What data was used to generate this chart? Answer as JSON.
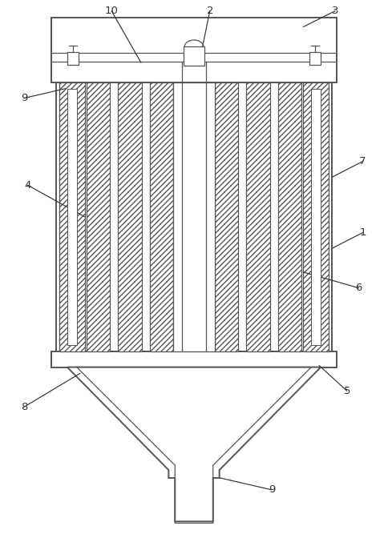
{
  "background_color": "#ffffff",
  "line_color": "#555555",
  "label_color": "#333333",
  "fig_width": 4.85,
  "fig_height": 6.72
}
